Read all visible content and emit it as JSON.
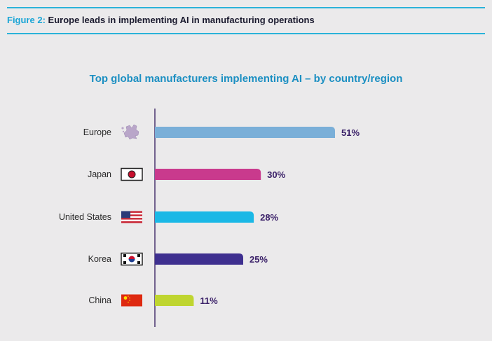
{
  "figure": {
    "label": "Figure 2:",
    "title": "Europe leads in implementing AI in manufacturing operations"
  },
  "chart_data": {
    "type": "bar",
    "orientation": "horizontal",
    "title": "Top global manufacturers implementing AI – by country/region",
    "categories": [
      "Europe",
      "Japan",
      "United States",
      "Korea",
      "China"
    ],
    "values": [
      51,
      30,
      28,
      25,
      11
    ],
    "value_labels": [
      "51%",
      "30%",
      "28%",
      "25%",
      "11%"
    ],
    "colors": [
      "#7aafd8",
      "#c93a8d",
      "#1ab8e6",
      "#3e2f8f",
      "#bfd530"
    ],
    "flags": [
      "europe-map-icon",
      "japan-flag-icon",
      "us-flag-icon",
      "korea-flag-icon",
      "china-flag-icon"
    ],
    "xlim": [
      0,
      51
    ],
    "xlabel": "",
    "ylabel": "",
    "grid": false,
    "legend": "none"
  }
}
